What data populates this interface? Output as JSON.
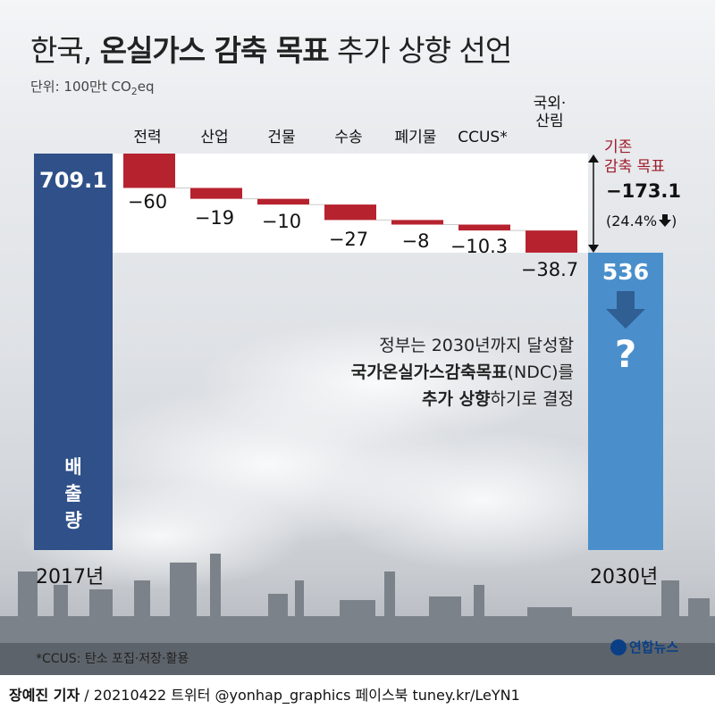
{
  "header": {
    "title_light_1": "한국, ",
    "title_bold": "온실가스 감축 목표",
    "title_light_2": " 추가 상향 선언",
    "unit_label": "단위: 100만t CO",
    "unit_sub": "2",
    "unit_suffix": "eq"
  },
  "chart_data": {
    "type": "bar",
    "subtype": "waterfall",
    "start": {
      "label": "2017년",
      "value": 709.1,
      "value_text": "709.1",
      "axis_label": [
        "배",
        "출",
        "량"
      ]
    },
    "end": {
      "label": "2030년",
      "value": 536,
      "value_text": "536"
    },
    "categories": [
      "전력",
      "산업",
      "건물",
      "수송",
      "폐기물",
      "CCUS*",
      "국외·\n산림"
    ],
    "values": [
      -60,
      -19,
      -10,
      -27,
      -8,
      -10.3,
      -38.7
    ],
    "value_labels": [
      "−60",
      "−19",
      "−10",
      "−27",
      "−8",
      "−10.3",
      "−38.7"
    ],
    "colors": {
      "start_bar": "#2f5088",
      "end_bar": "#4a8fcb",
      "decrease_bar": "#b7222f",
      "accent_text": "#9e1b2a"
    },
    "reduction_note": {
      "line1": "기존",
      "line2": "감축 목표",
      "total": "−173.1",
      "percent": "(24.4%"
    }
  },
  "callout": {
    "line1": "정부는 2030년까지 달성할",
    "line2_bold": "국가온실가스감축목표",
    "line2_rest": "(NDC)를",
    "line3_bold": "추가 상향",
    "line3_rest": "하기로 결정",
    "question_mark": "?"
  },
  "footer": {
    "footnote": "*CCUS: 탄소 포집·저장·활용",
    "credit_bold": "장예진 기자",
    "credit_rest": " / 20210422 트위터 @yonhap_graphics  페이스북 tuney.kr/LeYN1",
    "logo_text": "연합뉴스"
  }
}
